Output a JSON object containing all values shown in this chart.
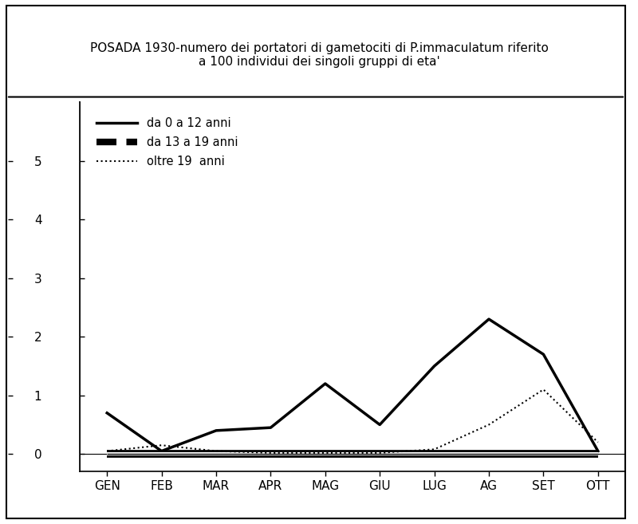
{
  "title_line1": "POSADA 1930-numero dei portatori di gametociti di P.immaculatum riferito",
  "title_line2": "a 100 individui dei singoli gruppi di eta'",
  "months": [
    "GEN",
    "FEB",
    "MAR",
    "APR",
    "MAG",
    "GIU",
    "LUG",
    "AG",
    "SET",
    "OTT"
  ],
  "series_0_12": [
    0.7,
    0.05,
    0.4,
    0.45,
    1.2,
    0.5,
    1.5,
    2.3,
    1.7,
    0.05
  ],
  "series_13_19": [
    0.0,
    0.0,
    0.0,
    0.0,
    0.0,
    0.0,
    0.0,
    0.0,
    0.0,
    0.0
  ],
  "series_19plus": [
    0.05,
    0.15,
    0.05,
    0.02,
    0.02,
    0.02,
    0.08,
    0.5,
    1.1,
    0.2
  ],
  "ylim_min": -0.3,
  "ylim_max": 6.0,
  "yticks": [
    0,
    1,
    2,
    3,
    4,
    5
  ],
  "legend_labels": [
    "da 0 a 12 anni",
    "da 13 a 19 anni",
    "oltre 19  anni"
  ],
  "bg_color": "#ffffff",
  "line_color": "#000000",
  "title_fontsize": 11,
  "tick_fontsize": 11
}
